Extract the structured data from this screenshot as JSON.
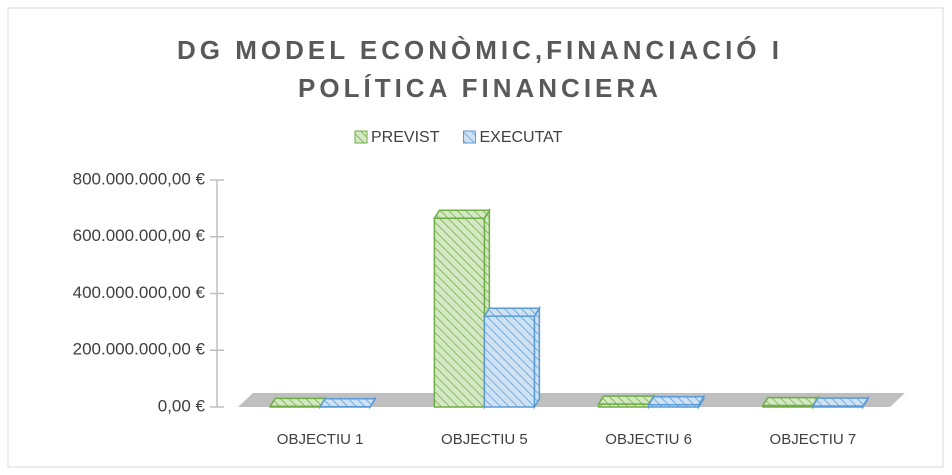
{
  "chart_data": {
    "type": "bar3d",
    "title": [
      "DG MODEL ECONÒMIC,FINANCIACIÓ I",
      "POLÍTICA FINANCIERA"
    ],
    "categories": [
      "OBJECTIU 1",
      "OBJECTIU 5",
      "OBJECTIU 6",
      "OBJECTIU 7"
    ],
    "series": [
      {
        "name": "PREVIST",
        "color": "#70ad47",
        "fill": "#d5e8c4",
        "values": [
          2000000,
          665000000,
          10000000,
          5000000
        ]
      },
      {
        "name": "EXECUTAT",
        "color": "#5b9bd5",
        "fill": "#cfe2f3",
        "values": [
          1000000,
          320000000,
          8000000,
          3000000
        ]
      }
    ],
    "ylim": [
      0,
      800000000
    ],
    "yticks": [
      {
        "value": 0,
        "label": "0,00 €"
      },
      {
        "value": 200000000,
        "label": "200.000.000,00 €"
      },
      {
        "value": 400000000,
        "label": "400.000.000,00 €"
      },
      {
        "value": 600000000,
        "label": "600.000.000,00 €"
      },
      {
        "value": 800000000,
        "label": "800.000.000,00 €"
      }
    ],
    "legend": "top"
  }
}
